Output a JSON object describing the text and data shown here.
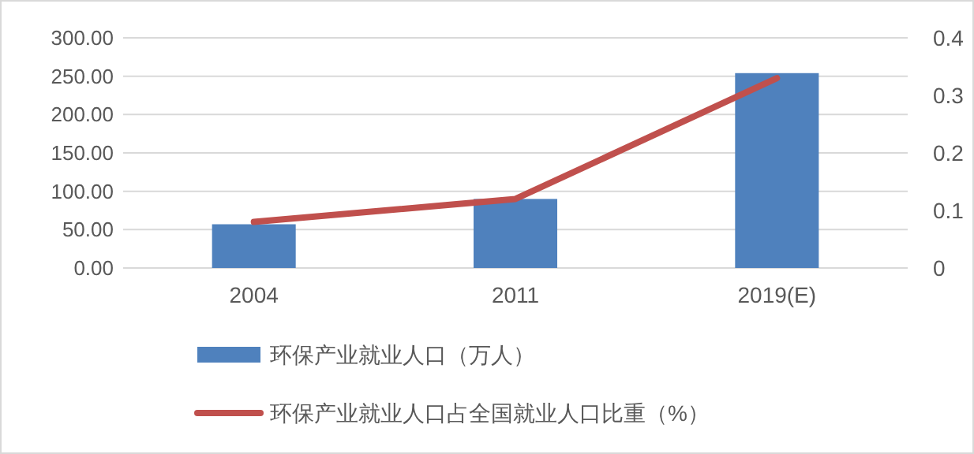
{
  "chart_data": {
    "type": "bar",
    "categories": [
      "2004",
      "2011",
      "2019(E)"
    ],
    "series": [
      {
        "name": "环保产业就业人口（万人）",
        "color": "#4f81bd",
        "values": [
          57,
          90,
          254
        ]
      },
      {
        "name": "环保产业就业人口占全国就业人口比重（%）",
        "type": "line",
        "axis": "y2",
        "color": "#c0504d",
        "values": [
          0.08,
          0.12,
          0.33
        ]
      }
    ],
    "ylim": [
      0,
      300
    ],
    "yticks": [
      {
        "value": 0,
        "label": "0.00"
      },
      {
        "value": 50,
        "label": "50.00"
      },
      {
        "value": 100,
        "label": "100.00"
      },
      {
        "value": 150,
        "label": "150.00"
      },
      {
        "value": 200,
        "label": "200.00"
      },
      {
        "value": 250,
        "label": "250.00"
      },
      {
        "value": 300,
        "label": "300.00"
      }
    ],
    "y2lim": [
      0,
      0.4
    ],
    "y2ticks": [
      0,
      0.1,
      0.2,
      0.3,
      0.4
    ],
    "grid": "y",
    "legend": "bottom",
    "marker": "none"
  }
}
